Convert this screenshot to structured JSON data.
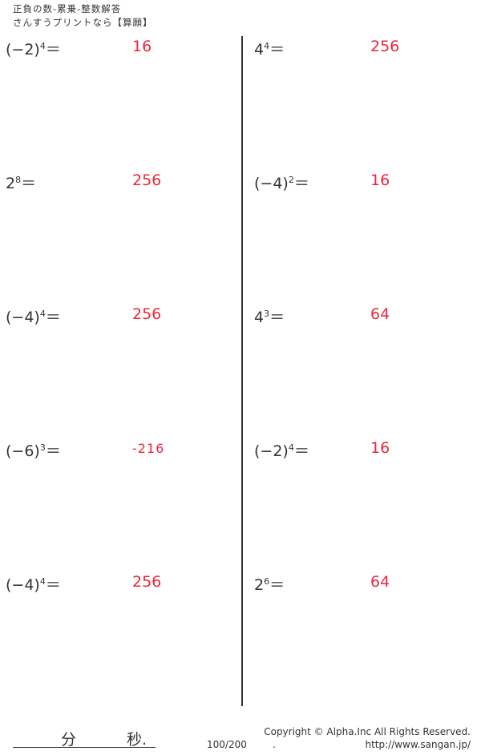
{
  "header": {
    "title": "正負の数-累乗-整数解答",
    "subtitle": "さんすうプリントなら【算願】"
  },
  "problems": [
    {
      "base": "(−2)",
      "exp": "4",
      "eq": "＝",
      "answer": "16"
    },
    {
      "base": "2",
      "exp": "8",
      "eq": "＝",
      "answer": "256"
    },
    {
      "base": "(−4)",
      "exp": "4",
      "eq": "＝",
      "answer": "256"
    },
    {
      "base": "(−6)",
      "exp": "3",
      "eq": "＝",
      "answer": "-216"
    },
    {
      "base": "(−4)",
      "exp": "4",
      "eq": "＝",
      "answer": "256"
    },
    {
      "base": "4",
      "exp": "4",
      "eq": "＝",
      "answer": "256"
    },
    {
      "base": "(−4)",
      "exp": "2",
      "eq": "＝",
      "answer": "16"
    },
    {
      "base": "4",
      "exp": "3",
      "eq": "＝",
      "answer": "64"
    },
    {
      "base": "(−2)",
      "exp": "4",
      "eq": "＝",
      "answer": "16"
    },
    {
      "base": "2",
      "exp": "6",
      "eq": "＝",
      "answer": "64"
    }
  ],
  "footer": {
    "minutes": "分",
    "seconds": "秒.",
    "score": "100/200",
    "dot": ".",
    "copyright": "Copyright ©  Alpha.Inc All Rights Reserved.",
    "url": "http://www.sangan.jp/"
  },
  "colors": {
    "answer": "#e8283c"
  }
}
